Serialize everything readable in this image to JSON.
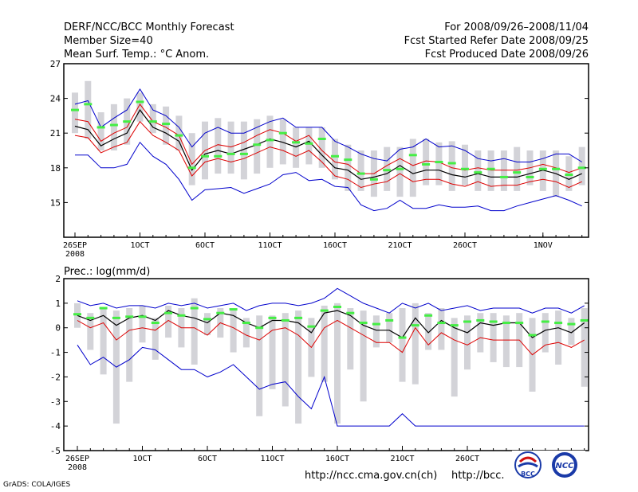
{
  "header": {
    "left": [
      "DERF/NCC/BCC Monthly Forecast",
      "Member Size=40",
      "Mean Surf. Temp.: °C Anom."
    ],
    "right": [
      "For 2008/09/26–2008/11/04",
      "Fcst Started Refer Date 2008/09/25",
      "Fcst Produced Date 2008/09/26"
    ]
  },
  "footer": {
    "credit": "GrADS: COLA/IGES",
    "url1": "http://ncc.cma.gov.cn(ch)",
    "url2": "http://bcc.",
    "logo1_text": "BCC",
    "logo2_text": "NCC"
  },
  "colors": {
    "envelope": "#0000cc",
    "spread": "#dd0000",
    "mean": "#000000",
    "median_marker": "#44ee44",
    "box": "#d3d3d8"
  },
  "chart_data": [
    {
      "type": "line",
      "title": "Mean Surf. Temp.: °C Anom.",
      "ylim": [
        12,
        27
      ],
      "yticks": [
        12,
        15,
        18,
        21,
        24,
        27
      ],
      "ytick_labels": [
        "",
        "15",
        "18",
        "21",
        "24",
        "27"
      ],
      "xtick_days": [
        0,
        5,
        10,
        15,
        20,
        25,
        30,
        36
      ],
      "xtick_labels": [
        "26SEP",
        "1OCT",
        "6OCT",
        "11OCT",
        "16OCT",
        "21OCT",
        "26OCT",
        "1NOV"
      ],
      "xtick_sublabel": "2008",
      "x_days": [
        0,
        1,
        2,
        3,
        4,
        5,
        6,
        7,
        8,
        9,
        10,
        11,
        12,
        13,
        14,
        15,
        16,
        17,
        18,
        19,
        20,
        21,
        22,
        23,
        24,
        25,
        26,
        27,
        28,
        29,
        30,
        31,
        32,
        33,
        34,
        35,
        36,
        37,
        38,
        39
      ],
      "series": [
        {
          "name": "max",
          "values": [
            23.5,
            23.8,
            21.5,
            22.3,
            23.0,
            24.8,
            23.0,
            22.5,
            21.5,
            19.8,
            21.0,
            21.5,
            21.0,
            21.0,
            21.5,
            22.0,
            22.3,
            21.5,
            21.5,
            21.5,
            20.3,
            19.8,
            19.2,
            18.8,
            18.6,
            19.6,
            19.8,
            20.5,
            19.8,
            19.9,
            19.5,
            18.8,
            18.6,
            18.8,
            18.5,
            18.5,
            18.8,
            19.2,
            19.2,
            18.5
          ]
        },
        {
          "name": "upper",
          "values": [
            22.2,
            22.0,
            20.3,
            21.0,
            21.5,
            23.5,
            22.0,
            21.5,
            20.8,
            18.3,
            19.5,
            20.0,
            19.8,
            20.2,
            20.8,
            21.3,
            21.0,
            20.3,
            20.8,
            19.5,
            18.5,
            18.3,
            17.5,
            17.5,
            18.2,
            18.8,
            18.2,
            18.6,
            18.5,
            18.0,
            17.8,
            18.0,
            17.8,
            17.8,
            17.8,
            18.0,
            18.3,
            18.0,
            17.6,
            18.0
          ]
        },
        {
          "name": "mean",
          "values": [
            21.6,
            21.3,
            19.9,
            20.5,
            21.0,
            23.0,
            21.5,
            21.0,
            20.3,
            17.8,
            19.2,
            19.5,
            19.2,
            19.6,
            20.0,
            20.5,
            20.2,
            19.8,
            20.3,
            19.1,
            18.0,
            17.8,
            17.0,
            17.2,
            17.5,
            18.2,
            17.5,
            17.8,
            17.8,
            17.4,
            17.2,
            17.5,
            17.2,
            17.2,
            17.2,
            17.5,
            17.8,
            17.5,
            17.0,
            17.5
          ]
        },
        {
          "name": "lower",
          "values": [
            20.8,
            20.6,
            19.3,
            19.8,
            20.2,
            22.0,
            20.8,
            20.2,
            19.5,
            17.3,
            18.5,
            18.8,
            18.5,
            18.8,
            19.3,
            19.8,
            19.5,
            19.0,
            19.5,
            18.5,
            17.3,
            17.0,
            16.3,
            16.6,
            16.8,
            17.5,
            16.8,
            17.0,
            17.0,
            16.6,
            16.4,
            16.8,
            16.4,
            16.5,
            16.5,
            16.8,
            17.0,
            16.8,
            16.3,
            16.8
          ]
        },
        {
          "name": "min",
          "values": [
            19.1,
            19.1,
            18.0,
            18.0,
            18.3,
            20.2,
            19.0,
            18.3,
            17.0,
            15.2,
            16.1,
            16.2,
            16.3,
            15.8,
            16.2,
            16.6,
            17.4,
            17.6,
            16.9,
            17.0,
            16.4,
            16.3,
            14.8,
            14.3,
            14.5,
            15.2,
            14.5,
            14.5,
            14.8,
            14.6,
            14.6,
            14.7,
            14.3,
            14.3,
            14.7,
            15.0,
            15.3,
            15.6,
            15.2,
            14.7
          ]
        },
        {
          "name": "median",
          "values": [
            23.0,
            23.5,
            21.5,
            21.7,
            22.0,
            23.7,
            22.0,
            21.8,
            20.8,
            18.0,
            19.0,
            19.0,
            19.2,
            19.2,
            20.0,
            20.4,
            21.0,
            20.2,
            20.1,
            20.5,
            19.0,
            18.7,
            17.5,
            17.0,
            17.8,
            17.9,
            19.1,
            18.3,
            18.5,
            18.4,
            17.9,
            17.6,
            17.9,
            17.2,
            17.6,
            17.2,
            17.9,
            17.9,
            17.4,
            18.0
          ]
        },
        {
          "name": "box_high",
          "values": [
            24.5,
            25.5,
            22.8,
            23.5,
            24.0,
            24.5,
            23.5,
            23.3,
            22.5,
            21.0,
            22.0,
            22.3,
            22.0,
            22.0,
            22.2,
            22.5,
            22.2,
            21.5,
            21.5,
            21.5,
            20.5,
            20.0,
            19.5,
            19.5,
            19.8,
            19.8,
            20.5,
            20.5,
            20.2,
            20.3,
            20.0,
            19.5,
            19.5,
            19.5,
            19.8,
            19.5,
            19.5,
            19.5,
            19.0,
            19.8
          ]
        },
        {
          "name": "box_low",
          "values": [
            21.0,
            20.5,
            19.5,
            19.5,
            20.0,
            22.0,
            21.0,
            20.0,
            19.5,
            16.5,
            17.0,
            17.5,
            17.5,
            17.0,
            17.5,
            18.0,
            18.3,
            18.0,
            18.3,
            18.0,
            17.0,
            16.0,
            16.0,
            15.5,
            16.0,
            15.5,
            15.5,
            16.5,
            16.5,
            16.0,
            16.5,
            16.0,
            16.0,
            16.0,
            16.0,
            16.5,
            16.0,
            15.5,
            16.0,
            16.5
          ]
        }
      ]
    },
    {
      "type": "line",
      "title": "Prec.: log(mm/d)",
      "ylim": [
        -5,
        2
      ],
      "yticks": [
        -5,
        -4,
        -3,
        -2,
        -1,
        0,
        1,
        2
      ],
      "ytick_labels": [
        "-5",
        "-4",
        "-3",
        "-2",
        "-1",
        "0",
        "1",
        "2"
      ],
      "xtick_days": [
        0,
        5,
        10,
        15,
        20,
        25,
        30
      ],
      "xtick_labels": [
        "26SEP",
        "1OCT",
        "6OCT",
        "11OCT",
        "16OCT",
        "21OCT",
        "26OCT"
      ],
      "xtick_sublabel": "2008",
      "x_days": [
        0,
        1,
        2,
        3,
        4,
        5,
        6,
        7,
        8,
        9,
        10,
        11,
        12,
        13,
        14,
        15,
        16,
        17,
        18,
        19,
        20,
        21,
        22,
        23,
        24,
        25,
        26,
        27,
        28,
        29,
        30,
        31,
        32,
        33,
        34,
        35,
        36,
        37,
        38,
        39
      ],
      "series": [
        {
          "name": "max",
          "values": [
            1.1,
            0.9,
            1.0,
            0.8,
            0.9,
            0.9,
            0.8,
            1.0,
            0.9,
            1.0,
            0.8,
            0.9,
            1.0,
            0.7,
            0.9,
            1.0,
            1.0,
            0.9,
            1.0,
            1.2,
            1.6,
            1.3,
            1.0,
            0.8,
            0.6,
            1.0,
            0.8,
            1.0,
            0.7,
            0.8,
            0.9,
            0.7,
            0.8,
            0.8,
            0.8,
            0.6,
            0.8,
            0.8,
            0.6,
            0.9
          ]
        },
        {
          "name": "mean",
          "values": [
            0.5,
            0.3,
            0.5,
            0.1,
            0.4,
            0.5,
            0.3,
            0.7,
            0.5,
            0.4,
            0.2,
            0.6,
            0.5,
            0.2,
            0.0,
            0.3,
            0.3,
            0.2,
            -0.2,
            0.6,
            0.7,
            0.5,
            0.1,
            -0.1,
            -0.1,
            -0.4,
            0.4,
            -0.2,
            0.3,
            0.0,
            -0.2,
            0.2,
            0.1,
            0.2,
            0.2,
            -0.4,
            -0.1,
            0.0,
            -0.2,
            0.2
          ]
        },
        {
          "name": "lower",
          "values": [
            0.3,
            0.0,
            0.2,
            -0.5,
            -0.1,
            0.0,
            -0.1,
            0.3,
            0.0,
            0.0,
            -0.3,
            0.2,
            0.0,
            -0.3,
            -0.5,
            -0.1,
            0.0,
            -0.3,
            -0.8,
            0.0,
            0.3,
            0.0,
            -0.3,
            -0.6,
            -0.6,
            -1.0,
            0.0,
            -0.7,
            -0.2,
            -0.5,
            -0.7,
            -0.4,
            -0.5,
            -0.5,
            -0.5,
            -1.1,
            -0.7,
            -0.6,
            -0.8,
            -0.5
          ]
        },
        {
          "name": "min",
          "values": [
            -0.7,
            -1.5,
            -1.2,
            -1.6,
            -1.3,
            -0.8,
            -0.9,
            -1.3,
            -1.7,
            -1.7,
            -2.0,
            -1.8,
            -1.5,
            -2.0,
            -2.5,
            -2.3,
            -2.2,
            -2.8,
            -3.3,
            -2.0,
            -4.0,
            -4.0,
            -4.0,
            -4.0,
            -4.0,
            -3.5,
            -4.0,
            -4.0,
            -4.0,
            -4.0,
            -4.0,
            -4.0,
            -4.0,
            -4.0,
            -4.0,
            -4.0,
            -4.0,
            -4.0,
            -4.0,
            -4.0
          ]
        },
        {
          "name": "median",
          "values": [
            0.55,
            0.4,
            0.8,
            0.4,
            0.45,
            0.45,
            0.2,
            0.6,
            0.5,
            0.8,
            0.35,
            0.6,
            0.75,
            0.2,
            0.0,
            0.4,
            0.3,
            0.4,
            0.05,
            0.7,
            0.85,
            0.6,
            0.2,
            0.15,
            0.3,
            -0.4,
            0.1,
            0.5,
            0.2,
            0.1,
            0.25,
            0.3,
            0.25,
            0.2,
            0.2,
            -0.3,
            0.25,
            0.2,
            0.15,
            0.3
          ]
        },
        {
          "name": "box_high",
          "values": [
            1.0,
            0.6,
            0.8,
            0.7,
            0.8,
            0.9,
            0.4,
            0.9,
            0.8,
            1.2,
            0.6,
            0.8,
            0.7,
            0.4,
            0.5,
            0.5,
            0.6,
            0.7,
            0.4,
            0.9,
            1.0,
            0.8,
            0.7,
            0.5,
            0.6,
            0.8,
            1.0,
            0.6,
            0.8,
            0.4,
            0.5,
            0.6,
            0.6,
            0.5,
            0.6,
            0.4,
            0.6,
            0.7,
            0.4,
            0.8
          ]
        },
        {
          "name": "box_low",
          "values": [
            0.0,
            -0.9,
            -1.9,
            -3.9,
            -2.2,
            -0.6,
            -1.3,
            -0.4,
            -0.8,
            -1.5,
            -0.3,
            -0.4,
            -1.0,
            -0.8,
            -3.6,
            -2.5,
            -3.2,
            -3.9,
            -2.0,
            -2.2,
            -3.9,
            -1.7,
            -3.0,
            -0.8,
            -0.6,
            -2.2,
            -2.3,
            -0.9,
            -0.9,
            -2.8,
            -1.7,
            -1.0,
            -1.4,
            -1.6,
            -1.6,
            -2.6,
            -1.0,
            -1.5,
            -0.7,
            -2.4
          ]
        }
      ]
    }
  ]
}
